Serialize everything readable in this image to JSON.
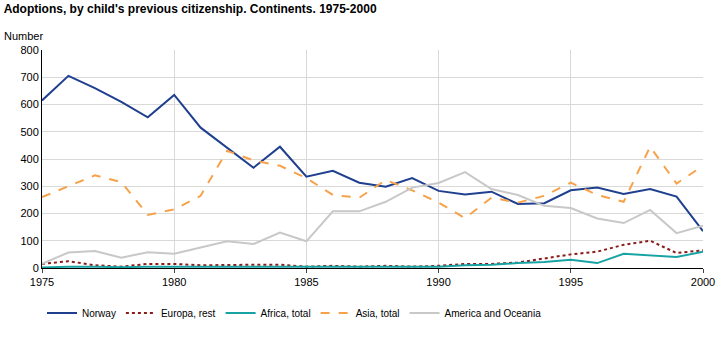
{
  "chart_data": {
    "type": "line",
    "title": "Adoptions, by child's previous citizenship. Continents. 1975-2000",
    "y_label": "Number",
    "x": [
      1975,
      1976,
      1977,
      1978,
      1979,
      1980,
      1981,
      1982,
      1983,
      1984,
      1985,
      1986,
      1987,
      1988,
      1989,
      1990,
      1991,
      1992,
      1993,
      1994,
      1995,
      1996,
      1997,
      1998,
      1999,
      2000
    ],
    "series": [
      {
        "name": "Norway",
        "color": "#1f3f8f",
        "line_style": "solid",
        "values": [
          615,
          705,
          660,
          610,
          553,
          635,
          515,
          440,
          368,
          445,
          335,
          357,
          313,
          298,
          330,
          283,
          270,
          280,
          235,
          238,
          285,
          295,
          272,
          290,
          262,
          135
        ]
      },
      {
        "name": "Europa, rest",
        "color": "#8b1a1a",
        "line_style": "dotted",
        "values": [
          15,
          25,
          10,
          5,
          15,
          15,
          10,
          12,
          12,
          12,
          5,
          8,
          5,
          8,
          5,
          8,
          15,
          15,
          20,
          35,
          50,
          60,
          85,
          100,
          55,
          65
        ]
      },
      {
        "name": "Africa, total",
        "color": "#17a3a3",
        "line_style": "solid",
        "values": [
          2,
          5,
          5,
          3,
          5,
          5,
          5,
          5,
          5,
          5,
          3,
          3,
          3,
          3,
          3,
          5,
          10,
          12,
          18,
          22,
          30,
          18,
          52,
          45,
          40,
          60
        ]
      },
      {
        "name": "Asia, total",
        "color": "#f7a24a",
        "line_style": "dashed",
        "values": [
          260,
          300,
          340,
          315,
          195,
          215,
          265,
          430,
          395,
          375,
          330,
          268,
          258,
          323,
          285,
          240,
          183,
          258,
          240,
          265,
          313,
          268,
          243,
          445,
          310,
          375
        ]
      },
      {
        "name": "America and Oceania",
        "color": "#c8c8c8",
        "line_style": "solid",
        "values": [
          15,
          57,
          62,
          38,
          58,
          52,
          75,
          98,
          88,
          130,
          98,
          208,
          208,
          243,
          295,
          312,
          352,
          290,
          268,
          228,
          220,
          182,
          165,
          213,
          128,
          155
        ]
      }
    ],
    "xlim": [
      1975,
      2000
    ],
    "xticks": [
      1975,
      1980,
      1985,
      1990,
      1995,
      2000
    ],
    "ylim": [
      0,
      800
    ],
    "yticks": [
      0,
      100,
      200,
      300,
      400,
      500,
      600,
      700,
      800
    ],
    "grid": true,
    "legend": "bottom"
  }
}
